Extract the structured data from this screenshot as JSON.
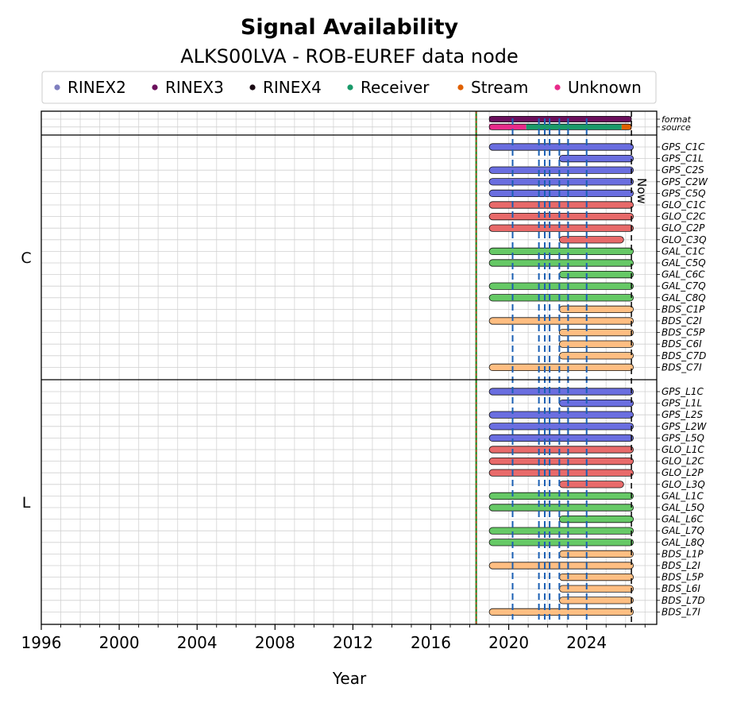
{
  "chart_data": {
    "type": "timeline",
    "title": "Signal Availability",
    "subtitle": "ALKS00LVA - ROB-EUREF data node",
    "xlabel": "Year",
    "xlim": [
      1996,
      2027.6
    ],
    "x_ticks": [
      "1996",
      "2000",
      "2004",
      "2008",
      "2012",
      "2016",
      "2020",
      "2024"
    ],
    "now_label": "Now",
    "now_year": 2026.3,
    "green_marker_year": 2018.33,
    "legend": [
      {
        "label": "RINEX2",
        "color": "#7f7fbf"
      },
      {
        "label": "RINEX3",
        "color": "#6b0f5c"
      },
      {
        "label": "RINEX4",
        "color": "#1a0a14"
      },
      {
        "label": "Receiver",
        "color": "#1a9a6a"
      },
      {
        "label": "Stream",
        "color": "#e06000"
      },
      {
        "label": "Unknown",
        "color": "#e82a8a"
      }
    ],
    "vlines": [
      2020.2,
      2021.55,
      2021.85,
      2022.1,
      2022.6,
      2023.05,
      2024.0
    ],
    "meta_rows": [
      {
        "label": "format",
        "segments": [
          {
            "start": 2019.0,
            "end": 2026.3,
            "color": "#6b0f5c"
          }
        ]
      },
      {
        "label": "source",
        "segments": [
          {
            "start": 2019.0,
            "end": 2020.9,
            "color": "#e82a8a"
          },
          {
            "start": 2020.9,
            "end": 2025.8,
            "color": "#1a9a6a"
          },
          {
            "start": 2025.8,
            "end": 2026.3,
            "color": "#e06000"
          }
        ]
      }
    ],
    "groups": [
      {
        "name": "C",
        "signals": [
          {
            "label": "GPS_C1C",
            "start": 2019.0,
            "end": 2026.4,
            "color": "#6a6ee0"
          },
          {
            "label": "GPS_C1L",
            "start": 2022.6,
            "end": 2026.4,
            "color": "#6a6ee0"
          },
          {
            "label": "GPS_C2S",
            "start": 2019.0,
            "end": 2026.4,
            "color": "#6a6ee0"
          },
          {
            "label": "GPS_C2W",
            "start": 2019.0,
            "end": 2026.4,
            "color": "#6a6ee0"
          },
          {
            "label": "GPS_C5Q",
            "start": 2019.0,
            "end": 2026.4,
            "color": "#6a6ee0"
          },
          {
            "label": "GLO_C1C",
            "start": 2019.0,
            "end": 2026.4,
            "color": "#e86a6a"
          },
          {
            "label": "GLO_C2C",
            "start": 2019.0,
            "end": 2026.4,
            "color": "#e86a6a"
          },
          {
            "label": "GLO_C2P",
            "start": 2019.0,
            "end": 2026.4,
            "color": "#e86a6a"
          },
          {
            "label": "GLO_C3Q",
            "start": 2022.6,
            "end": 2025.9,
            "color": "#e86a6a"
          },
          {
            "label": "GAL_C1C",
            "start": 2019.0,
            "end": 2026.4,
            "color": "#66c966"
          },
          {
            "label": "GAL_C5Q",
            "start": 2019.0,
            "end": 2026.4,
            "color": "#66c966"
          },
          {
            "label": "GAL_C6C",
            "start": 2022.6,
            "end": 2026.4,
            "color": "#66c966"
          },
          {
            "label": "GAL_C7Q",
            "start": 2019.0,
            "end": 2026.4,
            "color": "#66c966"
          },
          {
            "label": "GAL_C8Q",
            "start": 2019.0,
            "end": 2026.4,
            "color": "#66c966"
          },
          {
            "label": "BDS_C1P",
            "start": 2022.6,
            "end": 2026.4,
            "color": "#ffbe82"
          },
          {
            "label": "BDS_C2I",
            "start": 2019.0,
            "end": 2026.4,
            "color": "#ffbe82"
          },
          {
            "label": "BDS_C5P",
            "start": 2022.6,
            "end": 2026.4,
            "color": "#ffbe82"
          },
          {
            "label": "BDS_C6I",
            "start": 2022.6,
            "end": 2026.4,
            "color": "#ffbe82"
          },
          {
            "label": "BDS_C7D",
            "start": 2022.6,
            "end": 2026.4,
            "color": "#ffbe82"
          },
          {
            "label": "BDS_C7I",
            "start": 2019.0,
            "end": 2026.4,
            "color": "#ffbe82"
          }
        ]
      },
      {
        "name": "L",
        "signals": [
          {
            "label": "GPS_L1C",
            "start": 2019.0,
            "end": 2026.4,
            "color": "#6a6ee0"
          },
          {
            "label": "GPS_L1L",
            "start": 2022.6,
            "end": 2026.4,
            "color": "#6a6ee0"
          },
          {
            "label": "GPS_L2S",
            "start": 2019.0,
            "end": 2026.4,
            "color": "#6a6ee0"
          },
          {
            "label": "GPS_L2W",
            "start": 2019.0,
            "end": 2026.4,
            "color": "#6a6ee0"
          },
          {
            "label": "GPS_L5Q",
            "start": 2019.0,
            "end": 2026.4,
            "color": "#6a6ee0"
          },
          {
            "label": "GLO_L1C",
            "start": 2019.0,
            "end": 2026.4,
            "color": "#e86a6a"
          },
          {
            "label": "GLO_L2C",
            "start": 2019.0,
            "end": 2026.4,
            "color": "#e86a6a"
          },
          {
            "label": "GLO_L2P",
            "start": 2019.0,
            "end": 2026.4,
            "color": "#e86a6a"
          },
          {
            "label": "GLO_L3Q",
            "start": 2022.6,
            "end": 2025.9,
            "color": "#e86a6a"
          },
          {
            "label": "GAL_L1C",
            "start": 2019.0,
            "end": 2026.4,
            "color": "#66c966"
          },
          {
            "label": "GAL_L5Q",
            "start": 2019.0,
            "end": 2026.4,
            "color": "#66c966"
          },
          {
            "label": "GAL_L6C",
            "start": 2022.6,
            "end": 2026.4,
            "color": "#66c966"
          },
          {
            "label": "GAL_L7Q",
            "start": 2019.0,
            "end": 2026.4,
            "color": "#66c966"
          },
          {
            "label": "GAL_L8Q",
            "start": 2019.0,
            "end": 2026.4,
            "color": "#66c966"
          },
          {
            "label": "BDS_L1P",
            "start": 2022.6,
            "end": 2026.4,
            "color": "#ffbe82"
          },
          {
            "label": "BDS_L2I",
            "start": 2019.0,
            "end": 2026.4,
            "color": "#ffbe82"
          },
          {
            "label": "BDS_L5P",
            "start": 2022.6,
            "end": 2026.4,
            "color": "#ffbe82"
          },
          {
            "label": "BDS_L6I",
            "start": 2022.6,
            "end": 2026.4,
            "color": "#ffbe82"
          },
          {
            "label": "BDS_L7D",
            "start": 2022.6,
            "end": 2026.4,
            "color": "#ffbe82"
          },
          {
            "label": "BDS_L7I",
            "start": 2019.0,
            "end": 2026.4,
            "color": "#ffbe82"
          }
        ]
      }
    ]
  }
}
